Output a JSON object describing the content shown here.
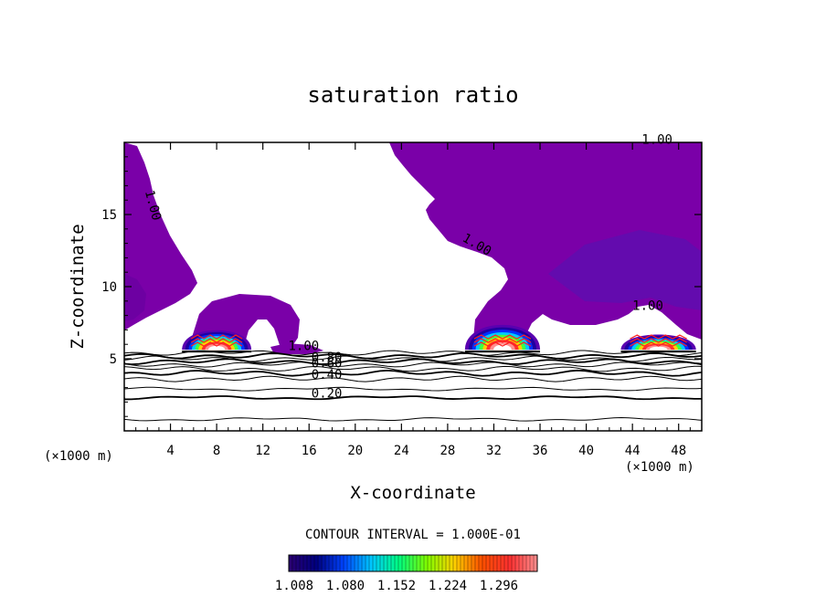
{
  "chart_data": {
    "type": "heatmap",
    "title": "saturation ratio",
    "xlabel": "X-coordinate",
    "ylabel": "Z-coordinate",
    "x_unit_left": "(×1000 m)",
    "x_unit_right": "(×1000 m)",
    "xlim": [
      0,
      50
    ],
    "ylim": [
      0,
      20
    ],
    "x_ticks": [
      4,
      8,
      12,
      16,
      20,
      24,
      28,
      32,
      36,
      40,
      44,
      48
    ],
    "y_ticks": [
      5,
      10,
      15
    ],
    "contour_interval_label": "CONTOUR INTERVAL = 1.000E-01",
    "colorbar": {
      "ticks": [
        "1.008",
        "1.080",
        "1.152",
        "1.224",
        "1.296"
      ],
      "colors": [
        "#2a0070",
        "#000080",
        "#0044ff",
        "#00c8ff",
        "#00ff80",
        "#80ff00",
        "#ffd000",
        "#ff5000",
        "#ff3030",
        "#ff9090"
      ]
    },
    "contour_labels": [
      {
        "text": "1.00",
        "x": 1.8,
        "y": 16.6,
        "angle": 75
      },
      {
        "text": "1.00",
        "x": 29.2,
        "y": 13.2,
        "angle": 30
      },
      {
        "text": "1.00",
        "x": 44.0,
        "y": 8.4,
        "angle": 0
      },
      {
        "text": "1.00",
        "x": 44.8,
        "y": 19.9,
        "angle": 0
      },
      {
        "text": "1.00",
        "x": 14.2,
        "y": 5.6,
        "angle": 0
      },
      {
        "text": "0.80",
        "x": 16.2,
        "y": 4.8,
        "angle": 0
      },
      {
        "text": "0.60",
        "x": 16.2,
        "y": 4.4,
        "angle": 0
      },
      {
        "text": "0.40",
        "x": 16.2,
        "y": 3.6,
        "angle": 0
      },
      {
        "text": "0.20",
        "x": 16.2,
        "y": 2.3,
        "angle": 0
      }
    ],
    "cores": [
      {
        "x": [
          5,
          11
        ],
        "base": 5.5,
        "top": 7.3
      },
      {
        "x": [
          29.5,
          36
        ],
        "base": 5.5,
        "top": 7.8
      },
      {
        "x": [
          43,
          49.5
        ],
        "base": 5.5,
        "top": 6.9
      }
    ],
    "low_contours": [
      0.8,
      2.3,
      2.9,
      3.6,
      4.0,
      4.3,
      4.6,
      4.8,
      5.0,
      5.2,
      5.4
    ]
  }
}
